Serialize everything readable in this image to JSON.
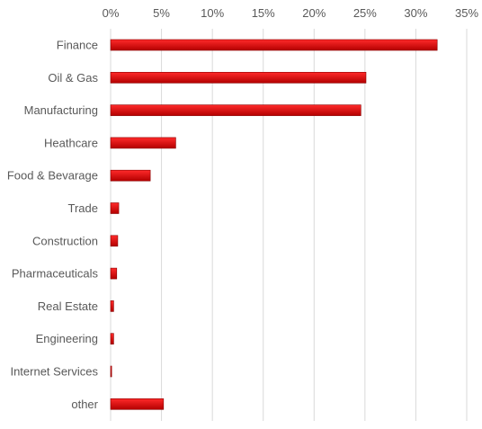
{
  "chart_data": {
    "type": "bar",
    "orientation": "horizontal",
    "categories": [
      "Finance",
      "Oil & Gas",
      "Manufacturing",
      "Heathcare",
      "Food & Bevarage",
      "Trade",
      "Construction",
      "Pharmaceuticals",
      "Real Estate",
      "Engineering",
      "Internet Services",
      "other"
    ],
    "values": [
      32.1,
      25.1,
      24.6,
      6.4,
      3.9,
      0.8,
      0.7,
      0.6,
      0.3,
      0.3,
      0.1,
      5.2
    ],
    "xlim": [
      0,
      35
    ],
    "x_ticks": [
      0,
      5,
      10,
      15,
      20,
      25,
      30,
      35
    ],
    "x_tick_labels": [
      "0%",
      "5%",
      "10%",
      "15%",
      "20%",
      "25%",
      "30%",
      "35%"
    ],
    "x_axis_position": "top",
    "grid": true,
    "legend": "none",
    "title": "",
    "xlabel": "",
    "ylabel": "",
    "colors": {
      "bar_top": "#ff2a2a",
      "bar_bottom": "#b30000",
      "bar_edge": "#8a0000",
      "grid": "#d9d9d9",
      "text": "#595959"
    }
  }
}
